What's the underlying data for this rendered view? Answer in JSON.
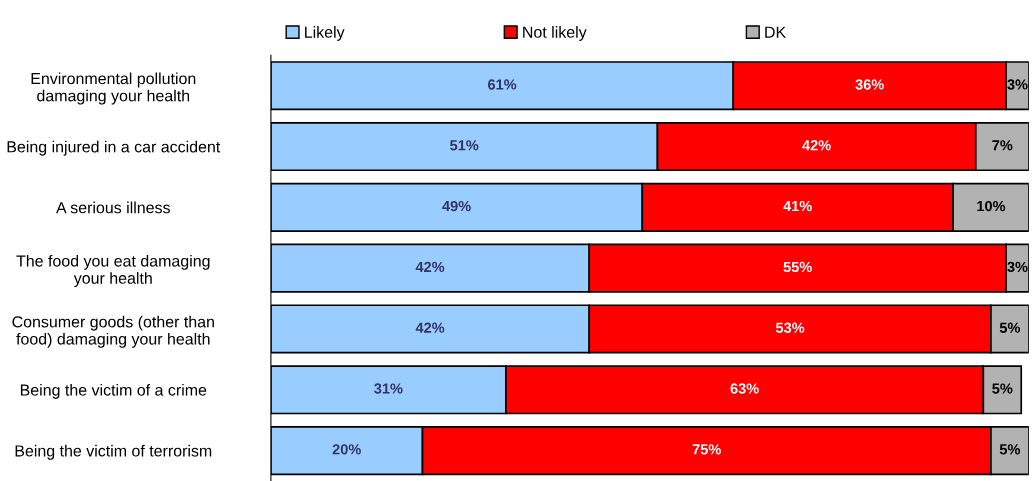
{
  "chart_data": {
    "type": "bar",
    "orientation": "horizontal",
    "stacked": true,
    "legend": "top",
    "grid": false,
    "tick_labels": "y",
    "categories": [
      "Environmental pollution\ndamaging your health",
      "Being injured in a car accident",
      "A serious illness",
      "The food you eat damaging\nyour health",
      "Consumer goods (other than\nfood) damaging your health",
      "Being the victim of a crime",
      "Being the victim of terrorism"
    ],
    "series": [
      {
        "name": "Likely",
        "color": "#99ccff",
        "values": [
          61,
          51,
          49,
          42,
          42,
          31,
          20
        ],
        "value_labels": [
          "61%",
          "51%",
          "49%",
          "42%",
          "42%",
          "31%",
          "20%"
        ]
      },
      {
        "name": "Not likely",
        "color": "#ff0000",
        "values": [
          36,
          42,
          41,
          55,
          53,
          63,
          75
        ],
        "value_labels": [
          "36%",
          "42%",
          "41%",
          "55%",
          "53%",
          "63%",
          "75%"
        ]
      },
      {
        "name": "DK",
        "color": "#b2b2b2",
        "values": [
          3,
          7,
          10,
          3,
          5,
          5,
          5
        ],
        "value_labels": [
          "3%",
          "7%",
          "10%",
          "3%",
          "5%",
          "5%",
          "5%"
        ]
      }
    ]
  }
}
